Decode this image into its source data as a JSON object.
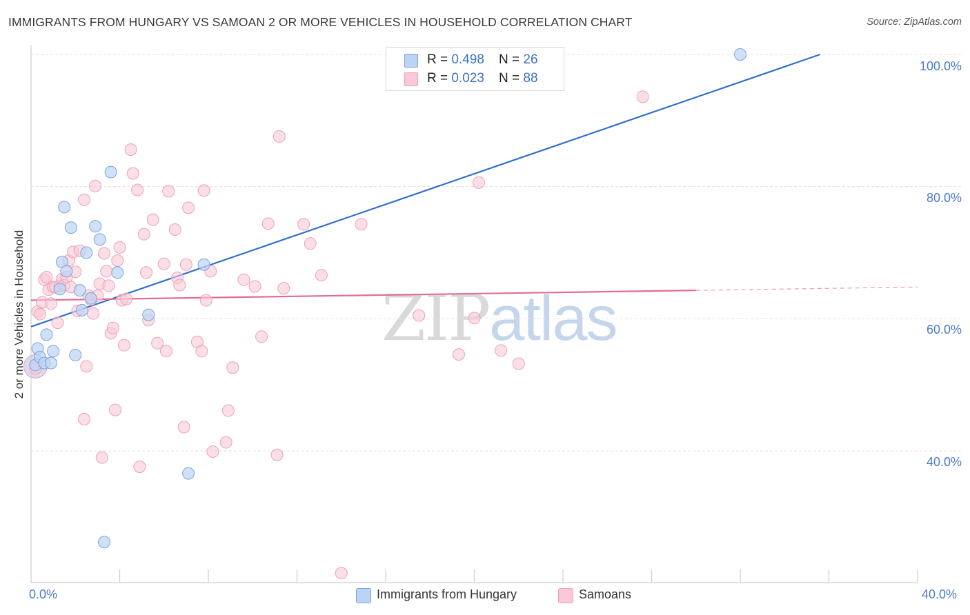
{
  "header": {
    "title": "IMMIGRANTS FROM HUNGARY VS SAMOAN 2 OR MORE VEHICLES IN HOUSEHOLD CORRELATION CHART",
    "source": "Source: ZipAtlas.com"
  },
  "watermark": {
    "zip": "ZIP",
    "atlas": "atlas"
  },
  "legend_top": {
    "rows": [
      {
        "r_label": "R = ",
        "r_value": "0.498",
        "n_label": "N = ",
        "n_value": "26"
      },
      {
        "r_label": "R = ",
        "r_value": "0.023",
        "n_label": "N = ",
        "n_value": "88"
      }
    ]
  },
  "legend_bottom": [
    "Immigrants from Hungary",
    "Samoans"
  ],
  "axis_labels": {
    "y_title": "2 or more Vehicles in Household",
    "y_ticks": [
      "100.0%",
      "80.0%",
      "60.0%",
      "40.0%"
    ],
    "x_min": "0.0%",
    "x_max": "40.0%"
  },
  "colors": {
    "hungary_fill": "#bcd4f4",
    "hungary_stroke": "#7aa4dc",
    "hungary_line": "#2f6fcf",
    "samoan_fill": "#f9c9d7",
    "samoan_stroke": "#eda0b7",
    "samoan_line": "#e36c94",
    "grid": "#e2e2e2",
    "tick_text": "#4a7cc7"
  },
  "chart_data": {
    "type": "scatter",
    "title": "IMMIGRANTS FROM HUNGARY VS SAMOAN 2 OR MORE VEHICLES IN HOUSEHOLD CORRELATION CHART",
    "xlabel": "",
    "ylabel": "2 or more Vehicles in Household",
    "xlim": [
      0,
      40
    ],
    "ylim": [
      20,
      102
    ],
    "x_unit": "%",
    "y_unit": "%",
    "grid": true,
    "legend_position": "bottom",
    "series": [
      {
        "name": "Immigrants from Hungary",
        "r": 0.498,
        "n": 26,
        "trend": {
          "x": [
            0,
            35.6
          ],
          "y": [
            58.8,
            100.0
          ]
        },
        "points": [
          [
            0.2,
            53.0
          ],
          [
            0.3,
            55.5
          ],
          [
            0.4,
            54.2
          ],
          [
            0.6,
            53.3
          ],
          [
            0.7,
            57.6
          ],
          [
            0.9,
            53.3
          ],
          [
            1.0,
            55.1
          ],
          [
            1.3,
            64.5
          ],
          [
            1.4,
            68.6
          ],
          [
            1.5,
            76.9
          ],
          [
            1.6,
            67.2
          ],
          [
            1.8,
            73.8
          ],
          [
            2.0,
            54.5
          ],
          [
            2.2,
            64.3
          ],
          [
            2.3,
            61.3
          ],
          [
            2.5,
            70.0
          ],
          [
            2.7,
            63.1
          ],
          [
            2.9,
            74.0
          ],
          [
            3.1,
            72.0
          ],
          [
            3.3,
            26.2
          ],
          [
            3.6,
            82.2
          ],
          [
            3.9,
            67.0
          ],
          [
            5.3,
            60.6
          ],
          [
            7.1,
            36.6
          ],
          [
            7.8,
            68.2
          ],
          [
            32.0,
            100.0
          ]
        ]
      },
      {
        "name": "Samoans",
        "r": 0.023,
        "n": 88,
        "trend": {
          "x": [
            0,
            30.0,
            40.0
          ],
          "y": [
            62.8,
            64.3,
            64.8
          ],
          "dashed_from_x": 30.0
        },
        "points": [
          [
            0.2,
            52.5
          ],
          [
            0.3,
            61.1
          ],
          [
            0.4,
            60.7
          ],
          [
            0.5,
            62.5
          ],
          [
            0.6,
            65.9
          ],
          [
            0.7,
            66.3
          ],
          [
            0.8,
            64.4
          ],
          [
            0.9,
            62.3
          ],
          [
            1.0,
            64.8
          ],
          [
            1.1,
            64.8
          ],
          [
            1.2,
            59.4
          ],
          [
            1.3,
            65.0
          ],
          [
            1.4,
            66.0
          ],
          [
            1.5,
            65.1
          ],
          [
            1.6,
            66.3
          ],
          [
            1.7,
            68.8
          ],
          [
            1.8,
            64.8
          ],
          [
            1.9,
            70.1
          ],
          [
            2.0,
            67.1
          ],
          [
            2.1,
            61.2
          ],
          [
            2.2,
            70.3
          ],
          [
            2.4,
            44.8
          ],
          [
            2.4,
            78.0
          ],
          [
            2.5,
            52.8
          ],
          [
            2.6,
            63.5
          ],
          [
            2.7,
            62.9
          ],
          [
            2.8,
            60.8
          ],
          [
            2.9,
            80.1
          ],
          [
            3.0,
            63.5
          ],
          [
            3.1,
            65.3
          ],
          [
            3.2,
            39.0
          ],
          [
            3.3,
            69.9
          ],
          [
            3.4,
            67.2
          ],
          [
            3.5,
            65.0
          ],
          [
            3.6,
            57.8
          ],
          [
            3.7,
            58.6
          ],
          [
            3.8,
            46.2
          ],
          [
            3.9,
            68.8
          ],
          [
            4.0,
            70.8
          ],
          [
            4.1,
            62.8
          ],
          [
            4.2,
            56.0
          ],
          [
            4.3,
            63.0
          ],
          [
            4.5,
            85.6
          ],
          [
            4.6,
            82.0
          ],
          [
            4.8,
            79.5
          ],
          [
            4.9,
            37.6
          ],
          [
            5.1,
            72.8
          ],
          [
            5.2,
            67.0
          ],
          [
            5.3,
            59.8
          ],
          [
            5.5,
            75.0
          ],
          [
            5.7,
            56.3
          ],
          [
            6.1,
            55.1
          ],
          [
            6.0,
            68.3
          ],
          [
            6.2,
            79.3
          ],
          [
            6.5,
            73.5
          ],
          [
            6.6,
            66.2
          ],
          [
            6.7,
            65.1
          ],
          [
            6.9,
            43.6
          ],
          [
            7.0,
            68.2
          ],
          [
            7.1,
            76.8
          ],
          [
            7.5,
            56.5
          ],
          [
            7.7,
            55.1
          ],
          [
            7.8,
            79.4
          ],
          [
            7.9,
            62.8
          ],
          [
            8.1,
            67.2
          ],
          [
            8.2,
            39.9
          ],
          [
            8.8,
            41.3
          ],
          [
            8.9,
            46.1
          ],
          [
            9.1,
            52.6
          ],
          [
            9.6,
            65.9
          ],
          [
            10.1,
            64.9
          ],
          [
            10.4,
            57.3
          ],
          [
            10.7,
            74.4
          ],
          [
            11.1,
            39.4
          ],
          [
            11.2,
            87.6
          ],
          [
            11.4,
            64.6
          ],
          [
            12.3,
            74.3
          ],
          [
            12.6,
            71.4
          ],
          [
            13.1,
            66.6
          ],
          [
            14.0,
            21.5
          ],
          [
            14.9,
            74.3
          ],
          [
            17.5,
            60.5
          ],
          [
            19.3,
            54.6
          ],
          [
            20.0,
            60.1
          ],
          [
            20.2,
            80.6
          ],
          [
            21.2,
            55.2
          ],
          [
            22.0,
            53.2
          ],
          [
            27.6,
            93.6
          ]
        ]
      }
    ]
  }
}
